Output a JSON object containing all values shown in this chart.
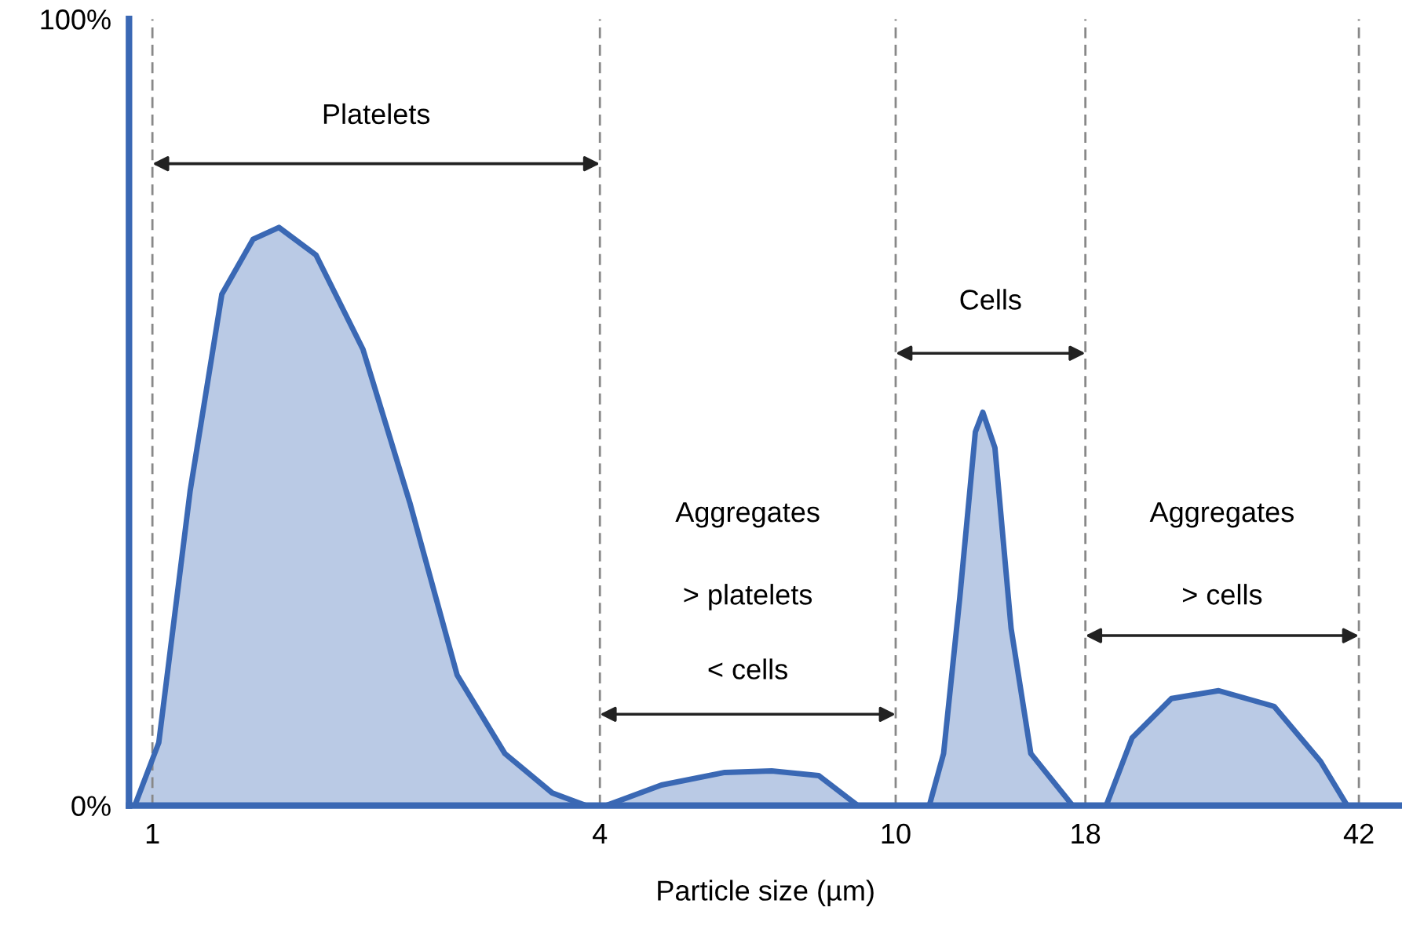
{
  "chart_data": {
    "type": "area",
    "xlabel": "Particle size (µm)",
    "log": "x",
    "xlim": [
      0.93,
      48
    ],
    "xticks": [
      1,
      4,
      10,
      18,
      42
    ],
    "ylim": [
      0,
      100
    ],
    "yticks": [
      {
        "value": 0,
        "label": "0%"
      },
      {
        "value": 100,
        "label": "100%"
      }
    ],
    "grid": false,
    "series": [
      {
        "color": "#3a68b4",
        "x": [
          0.947,
          1.02,
          1.124,
          1.24,
          1.366,
          1.48,
          1.66,
          1.92,
          2.22,
          2.57,
          2.98,
          3.45,
          3.83,
          4.08,
          4.84,
          5.89,
          6.81,
          7.88,
          8.89,
          11.1,
          11.6,
          12.2,
          12.8,
          13.1,
          13.6,
          14.3,
          15.2,
          17.3,
          19.2,
          20.8,
          23.5,
          27.2,
          32.3,
          37.3,
          40.5
        ],
        "values": [
          0,
          8,
          40,
          65,
          72,
          73.5,
          70,
          58,
          38.5,
          16.6,
          6.6,
          1.6,
          0,
          0,
          2.6,
          4.2,
          4.4,
          3.8,
          0,
          0,
          6.6,
          26.5,
          47.5,
          50,
          45.5,
          22.5,
          6.6,
          0,
          0,
          8.6,
          13.6,
          14.6,
          12.6,
          5.6,
          0
        ]
      }
    ],
    "ref_lines": [
      {
        "axis": "x",
        "value": 1,
        "line_style": "dashed",
        "color": "#888888"
      },
      {
        "axis": "x",
        "value": 4,
        "line_style": "dashed",
        "color": "#888888"
      },
      {
        "axis": "x",
        "value": 10,
        "line_style": "dashed",
        "color": "#888888"
      },
      {
        "axis": "x",
        "value": 18,
        "line_style": "dashed",
        "color": "#888888"
      },
      {
        "axis": "x",
        "value": 42,
        "line_style": "dashed",
        "color": "#888888"
      }
    ],
    "annotations": [
      "Platelets",
      "Aggregates",
      "> platelets",
      "< cells",
      "Cells",
      "Aggregates",
      "> cells"
    ]
  }
}
